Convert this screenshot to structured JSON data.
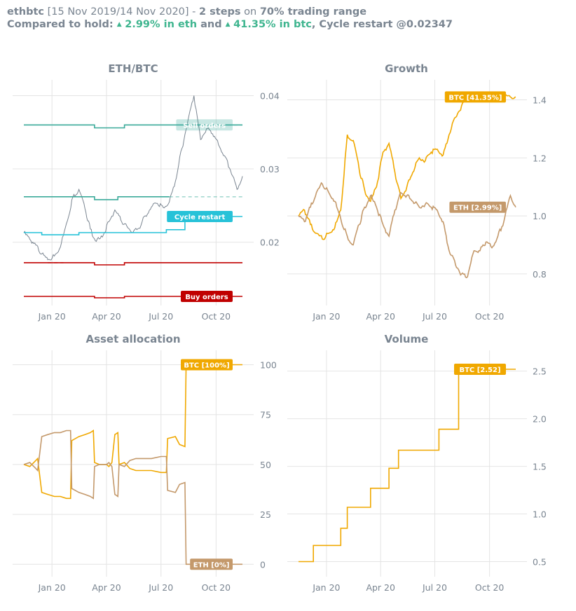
{
  "header": {
    "pair": "ethbtc",
    "period": "[15 Nov 2019/14 Nov 2020]",
    "dash": " - ",
    "steps": "2 steps",
    "on": " on ",
    "range": "70% trading range",
    "compared": "Compared to hold: ",
    "eth_gain": "2.99% in eth",
    "and": " and ",
    "btc_gain": "41.35% in btc",
    "restart": ", Cycle restart @0.02347"
  },
  "colors": {
    "price": "#7a8591",
    "sell": "#3aaa9a",
    "buy": "#c00000",
    "cycle": "#27c2d8",
    "btc": "#f0a800",
    "eth": "#c4996b",
    "grid": "#e4e4e4",
    "text": "#7a8591"
  },
  "x_ticks": [
    "Jan 20",
    "Apr 20",
    "Jul 20",
    "Oct 20"
  ],
  "x_tick_dates": [
    "2020-01-01",
    "2020-04-01",
    "2020-07-01",
    "2020-10-01"
  ],
  "chart_data": [
    {
      "type": "line",
      "title": "ETH/BTC",
      "x_range": [
        "2019-11-15",
        "2020-11-14"
      ],
      "ylim": [
        0.0125,
        0.041
      ],
      "y_ticks": [
        0.02,
        0.03,
        0.04
      ],
      "y_tick_labels": [
        "0.02",
        "0.03",
        "0.04"
      ],
      "series": [
        {
          "role": "price",
          "x": [
            "2019-11-15",
            "2019-11-25",
            "2019-12-05",
            "2019-12-15",
            "2019-12-25",
            "2020-01-05",
            "2020-01-15",
            "2020-01-25",
            "2020-02-05",
            "2020-02-15",
            "2020-02-25",
            "2020-03-05",
            "2020-03-15",
            "2020-03-25",
            "2020-04-05",
            "2020-04-15",
            "2020-04-25",
            "2020-05-05",
            "2020-05-15",
            "2020-05-25",
            "2020-06-05",
            "2020-06-15",
            "2020-06-25",
            "2020-07-05",
            "2020-07-15",
            "2020-07-25",
            "2020-08-05",
            "2020-08-15",
            "2020-08-25",
            "2020-09-05",
            "2020-09-15",
            "2020-09-25",
            "2020-10-05",
            "2020-10-15",
            "2020-10-25",
            "2020-11-05",
            "2020-11-14"
          ],
          "y": [
            0.0213,
            0.0204,
            0.0196,
            0.0184,
            0.0176,
            0.0181,
            0.0193,
            0.0225,
            0.0262,
            0.0272,
            0.0246,
            0.0218,
            0.0201,
            0.0207,
            0.0228,
            0.0244,
            0.023,
            0.0222,
            0.0213,
            0.0219,
            0.0236,
            0.0248,
            0.0253,
            0.0247,
            0.0255,
            0.0283,
            0.0328,
            0.0366,
            0.04,
            0.034,
            0.0355,
            0.0348,
            0.0333,
            0.0318,
            0.0298,
            0.0272,
            0.029
          ]
        },
        {
          "role": "sell-level-1",
          "x": [
            "2019-11-15",
            "2020-03-12",
            "2020-03-12",
            "2020-05-01",
            "2020-05-01",
            "2020-11-14"
          ],
          "y": [
            0.036,
            0.036,
            0.0356,
            0.0356,
            0.036,
            0.036
          ]
        },
        {
          "role": "sell-level-2",
          "x": [
            "2019-11-15",
            "2019-12-15",
            "2019-12-15",
            "2020-03-12",
            "2020-03-12",
            "2020-04-20",
            "2020-04-20",
            "2020-07-15"
          ],
          "y": [
            0.0262,
            0.0262,
            0.0262,
            0.0262,
            0.0258,
            0.0258,
            0.0262,
            0.0262
          ]
        },
        {
          "role": "sell-pending",
          "x": [
            "2020-07-15",
            "2020-11-14"
          ],
          "y": [
            0.0262,
            0.0262
          ]
        },
        {
          "role": "sell-pending-1",
          "x": [
            "2020-10-20",
            "2020-11-14"
          ],
          "y": [
            0.036,
            0.036
          ]
        },
        {
          "role": "cycle-restart",
          "x": [
            "2019-11-15",
            "2019-12-15",
            "2019-12-15",
            "2020-02-15",
            "2020-02-15",
            "2020-07-10",
            "2020-07-10",
            "2020-08-10",
            "2020-08-10",
            "2020-11-14"
          ],
          "y": [
            0.0213,
            0.0213,
            0.021,
            0.021,
            0.0213,
            0.0213,
            0.0217,
            0.0217,
            0.0235,
            0.0235
          ]
        },
        {
          "role": "buy-level-1",
          "x": [
            "2019-11-15",
            "2020-03-12",
            "2020-03-12",
            "2020-05-01",
            "2020-05-01",
            "2020-11-14"
          ],
          "y": [
            0.0172,
            0.0172,
            0.0169,
            0.0169,
            0.0172,
            0.0172
          ]
        },
        {
          "role": "buy-pending",
          "x": [
            "2019-12-25",
            "2020-01-20"
          ],
          "y": [
            0.0172,
            0.0172
          ]
        },
        {
          "role": "buy-level-2",
          "x": [
            "2019-11-15",
            "2020-03-12",
            "2020-03-12",
            "2020-05-01",
            "2020-05-01",
            "2020-11-14"
          ],
          "y": [
            0.0126,
            0.0126,
            0.0124,
            0.0124,
            0.0126,
            0.0126
          ]
        }
      ],
      "labels": [
        {
          "text": "Sell orders",
          "y": 0.036,
          "role": "sell"
        },
        {
          "text": "Cycle restart",
          "y": 0.0235,
          "role": "cycle"
        },
        {
          "text": "Buy orders",
          "y": 0.0126,
          "role": "buy"
        }
      ]
    },
    {
      "type": "line",
      "title": "Growth",
      "x_range": [
        "2019-11-15",
        "2020-11-14"
      ],
      "ylim": [
        0.72,
        1.44
      ],
      "y_ticks": [
        0.8,
        1.0,
        1.2,
        1.4
      ],
      "y_tick_labels": [
        "0.8",
        "1.0",
        "1.2",
        "1.4"
      ],
      "series": [
        {
          "role": "btc",
          "x": [
            "2019-11-15",
            "2019-11-25",
            "2019-12-05",
            "2019-12-15",
            "2019-12-25",
            "2020-01-05",
            "2020-01-15",
            "2020-01-25",
            "2020-02-05",
            "2020-02-15",
            "2020-02-25",
            "2020-03-05",
            "2020-03-15",
            "2020-03-25",
            "2020-04-05",
            "2020-04-15",
            "2020-04-25",
            "2020-05-05",
            "2020-05-15",
            "2020-05-25",
            "2020-06-05",
            "2020-06-15",
            "2020-06-25",
            "2020-07-05",
            "2020-07-15",
            "2020-07-25",
            "2020-08-05",
            "2020-08-15",
            "2020-08-25",
            "2020-09-05",
            "2020-09-15",
            "2020-09-25",
            "2020-10-05",
            "2020-10-15",
            "2020-10-25",
            "2020-11-05",
            "2020-11-14"
          ],
          "y": [
            1.0,
            1.02,
            0.97,
            0.94,
            0.92,
            0.94,
            0.96,
            1.02,
            1.28,
            1.26,
            1.16,
            1.09,
            1.05,
            1.1,
            1.22,
            1.25,
            1.15,
            1.06,
            1.1,
            1.15,
            1.2,
            1.19,
            1.22,
            1.23,
            1.21,
            1.28,
            1.34,
            1.38,
            1.41,
            1.41,
            1.41,
            1.41,
            1.41,
            1.41,
            1.41,
            1.41,
            1.41
          ]
        },
        {
          "role": "eth",
          "x": [
            "2019-11-15",
            "2019-11-25",
            "2019-12-05",
            "2019-12-15",
            "2019-12-25",
            "2020-01-05",
            "2020-01-15",
            "2020-01-25",
            "2020-02-05",
            "2020-02-15",
            "2020-02-25",
            "2020-03-05",
            "2020-03-15",
            "2020-03-25",
            "2020-04-05",
            "2020-04-15",
            "2020-04-25",
            "2020-05-05",
            "2020-05-15",
            "2020-05-25",
            "2020-06-05",
            "2020-06-15",
            "2020-06-25",
            "2020-07-05",
            "2020-07-15",
            "2020-07-25",
            "2020-08-05",
            "2020-08-15",
            "2020-08-25",
            "2020-09-05",
            "2020-09-15",
            "2020-09-25",
            "2020-10-05",
            "2020-10-15",
            "2020-10-25",
            "2020-11-05",
            "2020-11-14"
          ],
          "y": [
            1.0,
            0.98,
            1.03,
            1.08,
            1.11,
            1.08,
            1.05,
            0.99,
            0.93,
            0.9,
            0.97,
            1.03,
            1.07,
            1.03,
            0.97,
            0.93,
            1.02,
            1.08,
            1.07,
            1.05,
            1.03,
            1.04,
            1.03,
            1.02,
            0.98,
            0.88,
            0.83,
            0.8,
            0.79,
            0.88,
            0.88,
            0.91,
            0.89,
            0.93,
            0.98,
            1.07,
            1.03
          ]
        }
      ],
      "labels": [
        {
          "text": "BTC [41.35%]",
          "y": 1.41,
          "role": "btc"
        },
        {
          "text": "ETH [2.99%]",
          "y": 1.03,
          "role": "eth"
        }
      ]
    },
    {
      "type": "line",
      "title": "Asset allocation",
      "x_range": [
        "2019-11-15",
        "2020-11-14"
      ],
      "ylim": [
        -2,
        103
      ],
      "y_ticks": [
        0,
        25,
        50,
        75,
        100
      ],
      "y_tick_labels": [
        "0",
        "25",
        "50",
        "75",
        "100"
      ],
      "series": [
        {
          "role": "btc",
          "x": [
            "2019-11-15",
            "2019-11-25",
            "2019-12-05",
            "2019-12-08",
            "2019-12-15",
            "2019-12-25",
            "2020-01-05",
            "2020-01-15",
            "2020-01-25",
            "2020-02-01",
            "2020-02-03",
            "2020-02-15",
            "2020-02-25",
            "2020-03-05",
            "2020-03-10",
            "2020-03-12",
            "2020-03-20",
            "2020-04-01",
            "2020-04-05",
            "2020-04-10",
            "2020-04-15",
            "2020-04-20",
            "2020-04-22",
            "2020-05-01",
            "2020-05-10",
            "2020-05-20",
            "2020-06-01",
            "2020-06-15",
            "2020-07-01",
            "2020-07-10",
            "2020-07-12",
            "2020-07-25",
            "2020-08-01",
            "2020-08-10",
            "2020-08-12",
            "2020-09-01",
            "2020-10-01",
            "2020-11-14"
          ],
          "y": [
            50,
            49,
            52,
            53,
            36,
            35,
            34,
            34,
            33,
            33,
            62,
            64,
            65,
            66,
            67,
            51,
            50,
            50,
            49,
            51,
            65,
            66,
            50,
            51,
            48,
            47,
            47,
            47,
            46,
            46,
            63,
            64,
            60,
            59,
            100,
            100,
            100,
            100
          ]
        },
        {
          "role": "eth",
          "x": [
            "2019-11-15",
            "2019-11-25",
            "2019-12-05",
            "2019-12-08",
            "2019-12-15",
            "2019-12-25",
            "2020-01-05",
            "2020-01-15",
            "2020-01-25",
            "2020-02-01",
            "2020-02-03",
            "2020-02-15",
            "2020-02-25",
            "2020-03-05",
            "2020-03-10",
            "2020-03-12",
            "2020-03-20",
            "2020-04-01",
            "2020-04-05",
            "2020-04-10",
            "2020-04-15",
            "2020-04-20",
            "2020-04-22",
            "2020-05-01",
            "2020-05-10",
            "2020-05-20",
            "2020-06-01",
            "2020-06-15",
            "2020-07-01",
            "2020-07-10",
            "2020-07-12",
            "2020-07-25",
            "2020-08-01",
            "2020-08-10",
            "2020-08-12",
            "2020-09-01",
            "2020-10-01",
            "2020-11-14"
          ],
          "y": [
            50,
            51,
            48,
            47,
            64,
            65,
            66,
            66,
            67,
            67,
            38,
            36,
            35,
            34,
            33,
            49,
            50,
            50,
            51,
            49,
            35,
            34,
            50,
            49,
            52,
            53,
            53,
            53,
            54,
            54,
            37,
            36,
            40,
            41,
            0,
            0,
            0,
            0
          ]
        }
      ],
      "labels": [
        {
          "text": "BTC [100%]",
          "y": 100,
          "role": "btc"
        },
        {
          "text": "ETH [0%]",
          "y": 0,
          "role": "eth"
        }
      ]
    },
    {
      "type": "line",
      "title": "Volume",
      "x_range": [
        "2019-11-15",
        "2020-11-14"
      ],
      "ylim": [
        0.43,
        2.63
      ],
      "y_ticks": [
        0.5,
        1.0,
        1.5,
        2.0,
        2.5
      ],
      "y_tick_labels": [
        "0.5",
        "1.0",
        "1.5",
        "2.0",
        "2.5"
      ],
      "series": [
        {
          "role": "btc",
          "x": [
            "2019-11-15",
            "2019-12-10",
            "2019-12-10",
            "2020-01-10",
            "2020-01-10",
            "2020-01-25",
            "2020-01-25",
            "2020-02-05",
            "2020-02-05",
            "2020-03-15",
            "2020-03-15",
            "2020-04-15",
            "2020-04-15",
            "2020-05-01",
            "2020-05-01",
            "2020-07-08",
            "2020-07-08",
            "2020-08-10",
            "2020-08-10",
            "2020-11-14"
          ],
          "y": [
            0.5,
            0.5,
            0.67,
            0.67,
            0.67,
            0.67,
            0.85,
            0.85,
            1.07,
            1.07,
            1.27,
            1.27,
            1.48,
            1.48,
            1.67,
            1.67,
            1.89,
            1.89,
            2.52,
            2.52
          ]
        }
      ],
      "labels": [
        {
          "text": "BTC [2.52]",
          "y": 2.52,
          "role": "btc"
        }
      ]
    }
  ]
}
